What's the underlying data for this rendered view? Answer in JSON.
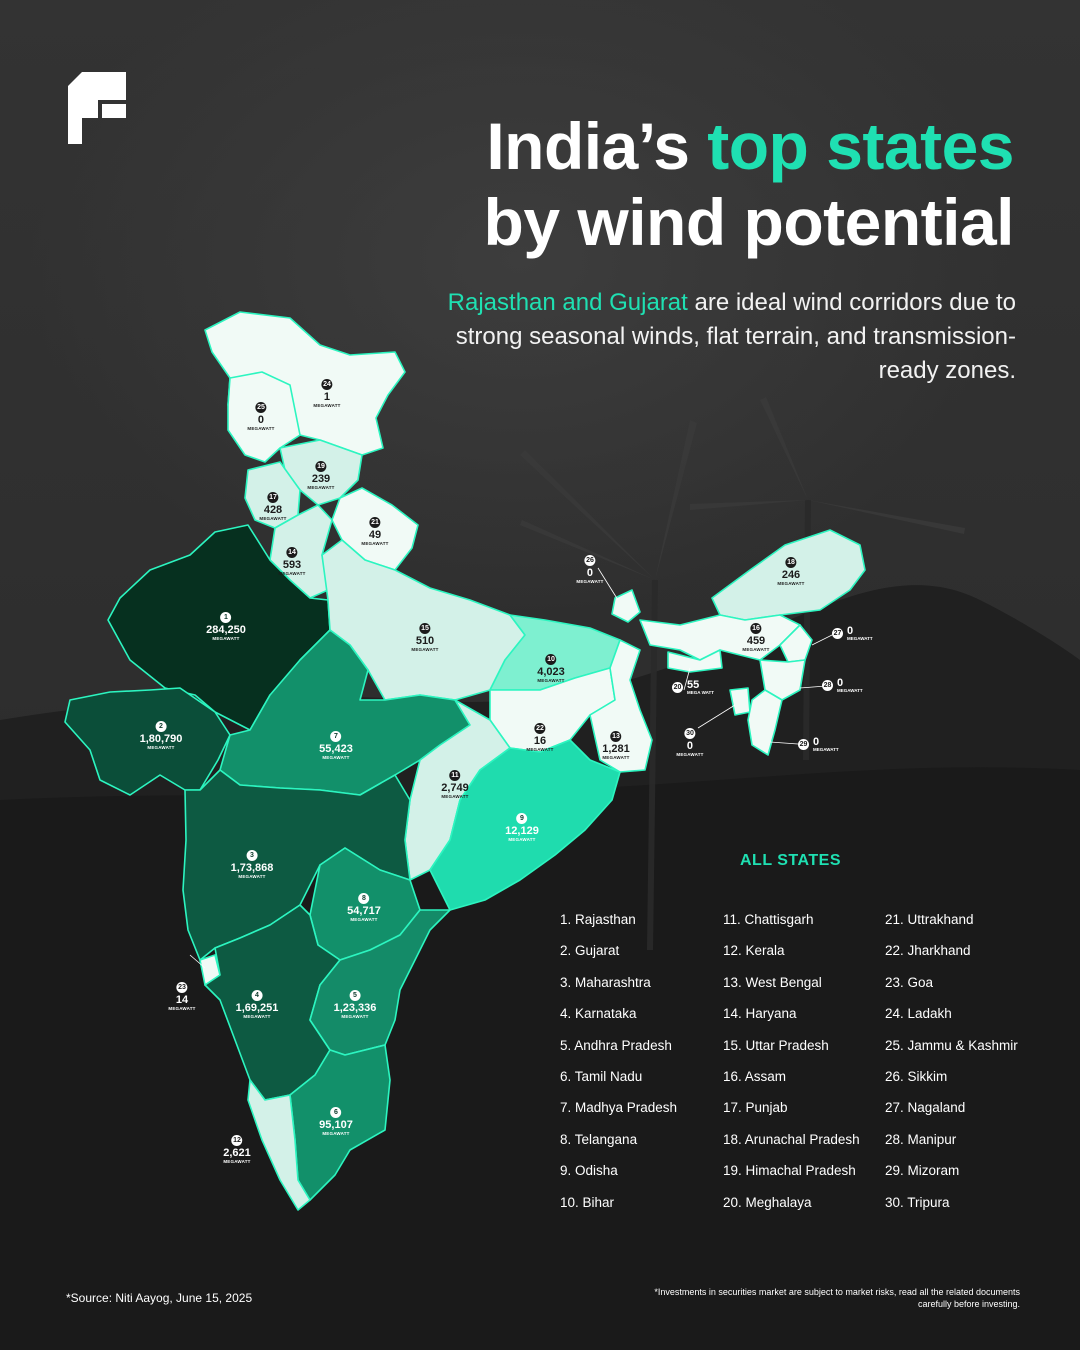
{
  "title": {
    "line1_plain": "India’s ",
    "line1_accent": "top states",
    "line2": "by wind potential"
  },
  "subtitle": {
    "accent": "Rajasthan and Gujarat",
    "rest": " are ideal wind corridors due to strong seasonal winds, flat terrain, and transmission-ready zones."
  },
  "colors": {
    "accent": "#1fe0b2",
    "tier_darkest": "#06301f",
    "tier_dark": "#0d5a42",
    "tier_mid": "#12906a",
    "tier_bright": "#1fdcae",
    "tier_light": "#7ef0d0",
    "tier_pale": "#d3f1e8",
    "tier_white": "#f1faf6",
    "outline": "#2cf5c0"
  },
  "map": {
    "unit": "MEGAWATT",
    "states": [
      {
        "rank": "1",
        "value": "284,250"
      },
      {
        "rank": "2",
        "value": "1,80,790"
      },
      {
        "rank": "3",
        "value": "1,73,868"
      },
      {
        "rank": "4",
        "value": "1,69,251"
      },
      {
        "rank": "5",
        "value": "1,23,336"
      },
      {
        "rank": "6",
        "value": "95,107"
      },
      {
        "rank": "7",
        "value": "55,423"
      },
      {
        "rank": "8",
        "value": "54,717"
      },
      {
        "rank": "9",
        "value": "12,129"
      },
      {
        "rank": "10",
        "value": "4,023"
      },
      {
        "rank": "11",
        "value": "2,749"
      },
      {
        "rank": "12",
        "value": "2,621"
      },
      {
        "rank": "13",
        "value": "1,281"
      },
      {
        "rank": "14",
        "value": "593"
      },
      {
        "rank": "15",
        "value": "510"
      },
      {
        "rank": "16",
        "value": "459"
      },
      {
        "rank": "17",
        "value": "428"
      },
      {
        "rank": "18",
        "value": "246"
      },
      {
        "rank": "19",
        "value": "239"
      },
      {
        "rank": "20",
        "value": "55",
        "unit": "MEGA WATT"
      },
      {
        "rank": "21",
        "value": "49"
      },
      {
        "rank": "22",
        "value": "16"
      },
      {
        "rank": "23",
        "value": "14"
      },
      {
        "rank": "24",
        "value": "1"
      },
      {
        "rank": "25",
        "value": "0"
      },
      {
        "rank": "26",
        "value": "0"
      },
      {
        "rank": "27",
        "value": "0"
      },
      {
        "rank": "28",
        "value": "0"
      },
      {
        "rank": "29",
        "value": "0"
      },
      {
        "rank": "30",
        "value": "0"
      }
    ]
  },
  "legend": {
    "title": "ALL STATES",
    "items": [
      "1.  Rajasthan",
      "2.  Gujarat",
      "3.  Maharashtra",
      "4.  Karnataka",
      "5.  Andhra Pradesh",
      "6.  Tamil Nadu",
      "7.  Madhya Pradesh",
      "8.  Telangana",
      "9.  Odisha",
      "10. Bihar",
      "11. Chattisgarh",
      "12. Kerala",
      "13. West Bengal",
      "14. Haryana",
      "15. Uttar Pradesh",
      "16. Assam",
      "17. Punjab",
      "18. Arunachal Pradesh",
      "19. Himachal Pradesh",
      "20. Meghalaya",
      "21. Uttrakhand",
      "22. Jharkhand",
      "23. Goa",
      "24. Ladakh",
      "25. Jammu & Kashmir",
      "26. Sikkim",
      "27. Nagaland",
      "28. Manipur",
      "29. Mizoram",
      "30. Tripura"
    ]
  },
  "footer": {
    "source": "*Source: Niti Aayog, June 15, 2025",
    "disclaimer": "*Investments in securities market are subject to market risks, read all the related documents carefully before investing."
  }
}
